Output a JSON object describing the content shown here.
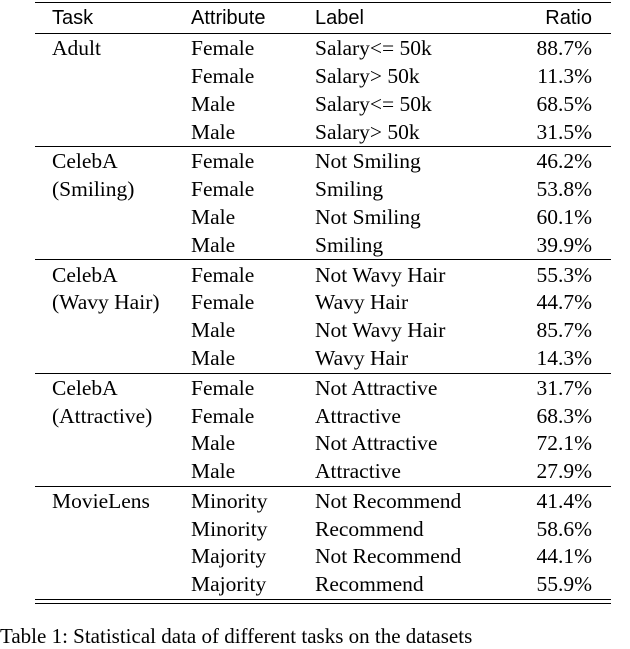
{
  "table": {
    "header": {
      "task": "Task",
      "attribute": "Attribute",
      "label": "Label",
      "ratio": "Ratio"
    },
    "groups": [
      {
        "task_lines": [
          "Adult",
          ""
        ],
        "rows": [
          {
            "attribute": "Female",
            "label": "Salary<= 50k",
            "ratio": "88.7%"
          },
          {
            "attribute": "Female",
            "label": "Salary> 50k",
            "ratio": "11.3%"
          },
          {
            "attribute": "Male",
            "label": "Salary<= 50k",
            "ratio": "68.5%"
          },
          {
            "attribute": "Male",
            "label": "Salary> 50k",
            "ratio": "31.5%"
          }
        ]
      },
      {
        "task_lines": [
          "CelebA",
          "(Smiling)"
        ],
        "rows": [
          {
            "attribute": "Female",
            "label": "Not Smiling",
            "ratio": "46.2%"
          },
          {
            "attribute": "Female",
            "label": "Smiling",
            "ratio": "53.8%"
          },
          {
            "attribute": "Male",
            "label": "Not Smiling",
            "ratio": "60.1%"
          },
          {
            "attribute": "Male",
            "label": "Smiling",
            "ratio": "39.9%"
          }
        ]
      },
      {
        "task_lines": [
          "CelebA",
          "(Wavy Hair)"
        ],
        "rows": [
          {
            "attribute": "Female",
            "label": "Not Wavy Hair",
            "ratio": "55.3%"
          },
          {
            "attribute": "Female",
            "label": "Wavy Hair",
            "ratio": "44.7%"
          },
          {
            "attribute": "Male",
            "label": "Not Wavy Hair",
            "ratio": "85.7%"
          },
          {
            "attribute": "Male",
            "label": "Wavy Hair",
            "ratio": "14.3%"
          }
        ]
      },
      {
        "task_lines": [
          "CelebA",
          "(Attractive)"
        ],
        "rows": [
          {
            "attribute": "Female",
            "label": "Not Attractive",
            "ratio": "31.7%"
          },
          {
            "attribute": "Female",
            "label": "Attractive",
            "ratio": "68.3%"
          },
          {
            "attribute": "Male",
            "label": "Not Attractive",
            "ratio": "72.1%"
          },
          {
            "attribute": "Male",
            "label": "Attractive",
            "ratio": "27.9%"
          }
        ]
      },
      {
        "task_lines": [
          "MovieLens",
          ""
        ],
        "rows": [
          {
            "attribute": "Minority",
            "label": "Not Recommend",
            "ratio": "41.4%"
          },
          {
            "attribute": "Minority",
            "label": "Recommend",
            "ratio": "58.6%"
          },
          {
            "attribute": "Majority",
            "label": "Not Recommend",
            "ratio": "44.1%"
          },
          {
            "attribute": "Majority",
            "label": "Recommend",
            "ratio": "55.9%"
          }
        ]
      }
    ]
  },
  "caption": "Table 1: Statistical data of different tasks on the datasets"
}
